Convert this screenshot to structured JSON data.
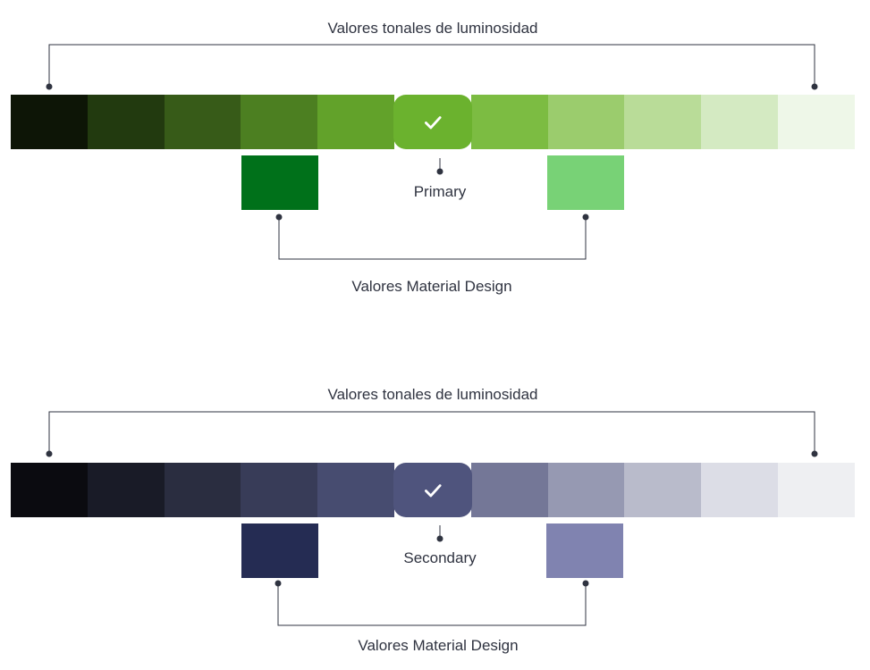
{
  "palettes": [
    {
      "tonal_title": "Valores tonales de luminosidad",
      "role_label": "Primary",
      "md_title": "Valores Material Design",
      "check_icon": "check-icon",
      "selected_index": 5,
      "tones": [
        "#0d1506",
        "#223a0f",
        "#375b18",
        "#4c7f21",
        "#62a22a",
        "#6bb22e",
        "#7cbc42",
        "#9bcc6d",
        "#b9dc98",
        "#d4eac2",
        "#eef7e8"
      ],
      "md_colors": [
        "#00711a",
        "#78d276"
      ]
    },
    {
      "tonal_title": "Valores tonales de luminosidad",
      "role_label": "Secondary",
      "md_title": "Valores Material Design",
      "check_icon": "check-icon",
      "selected_index": 5,
      "tones": [
        "#0b0b10",
        "#191b27",
        "#2a2d40",
        "#383c58",
        "#474c70",
        "#4f547d",
        "#747797",
        "#9699b2",
        "#b9bbcb",
        "#dcdde6",
        "#eeeff2"
      ],
      "md_colors": [
        "#252c53",
        "#8083b0"
      ]
    }
  ]
}
